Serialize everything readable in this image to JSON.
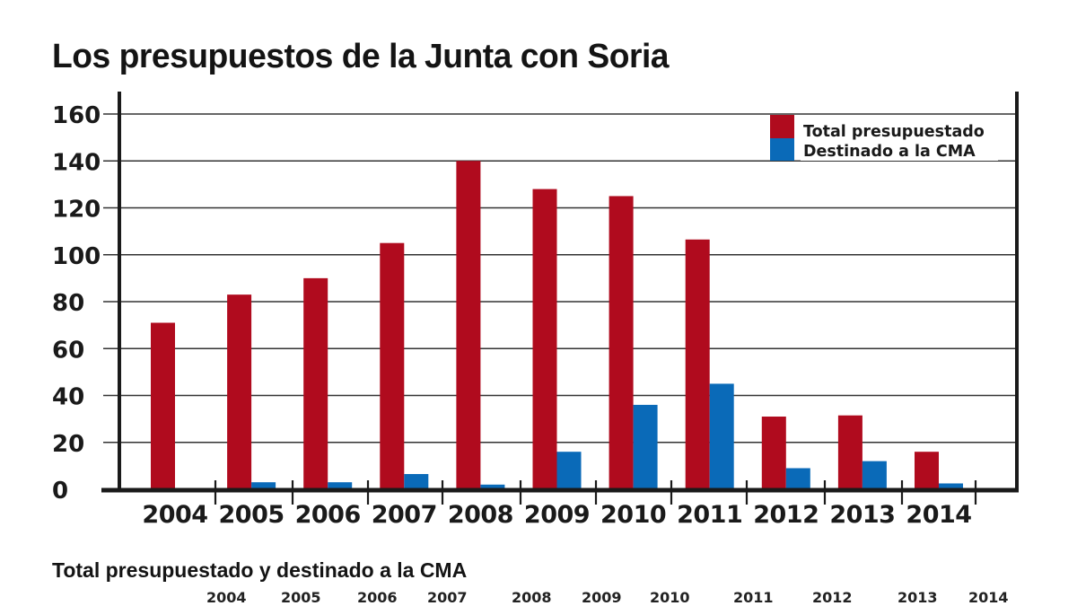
{
  "title": "Los presupuestos de la Junta con Soria",
  "subtitle": "Total presupuestado y destinado a la CMA",
  "bottom_years": [
    "2004",
    "2005",
    "2006",
    "2007",
    "2008",
    "2009",
    "2010",
    "2011",
    "2012",
    "2013",
    "2014"
  ],
  "colors": {
    "total": "#b00b1e",
    "cma": "#0a6ab8",
    "axis": "#1a1a1a",
    "grid": "#333333"
  },
  "chart_data": {
    "type": "bar",
    "title": "Los presupuestos de la Junta con Soria",
    "xlabel": "",
    "ylabel": "",
    "categories": [
      "2004",
      "2005",
      "2006",
      "2007",
      "2008",
      "2009",
      "2010",
      "2011",
      "2012",
      "2013",
      "2014"
    ],
    "series": [
      {
        "name": "Total presupuestado",
        "values": [
          71,
          83,
          90,
          105,
          140,
          128,
          125,
          106.5,
          31,
          31.5,
          16
        ]
      },
      {
        "name": "Destinado a la CMA",
        "values": [
          0,
          3,
          3,
          6.5,
          2,
          16,
          36,
          45,
          9,
          12,
          2.5
        ]
      }
    ],
    "ylim": [
      0,
      160
    ],
    "yticks": [
      0,
      20,
      40,
      60,
      80,
      100,
      120,
      140,
      160
    ],
    "grid": true,
    "legend_position": "top-right"
  }
}
